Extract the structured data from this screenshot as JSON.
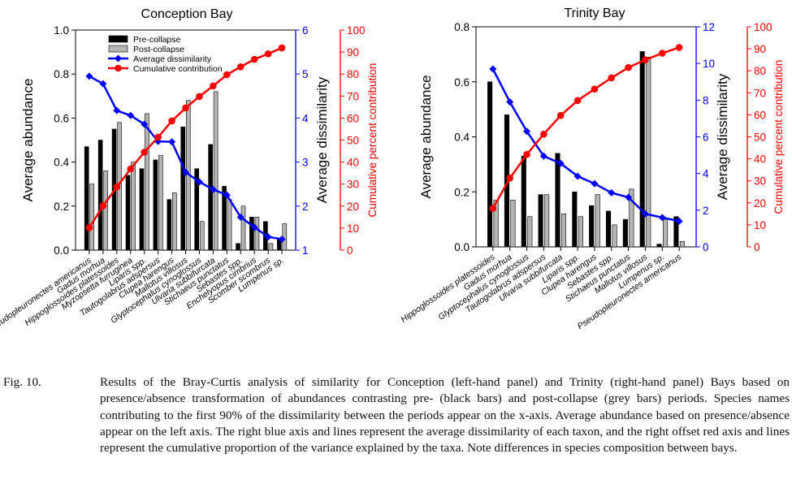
{
  "legend": {
    "pre": "Pre-collapse",
    "post": "Post-collapse",
    "diss": "Average dissimilarity",
    "cum": "Cumulative contribution"
  },
  "colors": {
    "pre": "#000000",
    "post": "#b4b4b4",
    "dissimilarity": "#0000ff",
    "cumulative": "#ff0000"
  },
  "caption": {
    "label": "Fig. 10.",
    "text": "Results of the Bray-Curtis analysis of similarity for Conception (left-hand panel) and Trinity (right-hand panel) Bays based on presence/absence transformation of abundances contrasting pre- (black bars) and post-collapse (grey bars) periods. Species names contributing to the first 90% of the dissimilarity between the periods appear on the x-axis. Average abundance based on presence/absence appear on the left axis. The right blue axis and lines represent the average dissimilarity of each taxon, and the right offset red axis and lines represent the cumulative proportion of the variance explained by the taxa. Note differences in species composition between bays."
  },
  "chart_data": [
    {
      "type": "bar",
      "title": "Conception Bay",
      "xlabel": "",
      "ylabel": "Average abundance",
      "ylabel_right": "Average dissimilarity",
      "ylabel_right2": "Cumulative percent contribution",
      "ylim": [
        0,
        1.0
      ],
      "yticks": [
        "0.0",
        "0.2",
        "0.4",
        "0.6",
        "0.8",
        "1.0"
      ],
      "ylim_right": [
        1,
        6
      ],
      "yticks_right": [
        "1",
        "2",
        "3",
        "4",
        "5",
        "6"
      ],
      "ylim_right2": [
        0,
        100
      ],
      "yticks_right2": [
        "0",
        "10",
        "20",
        "30",
        "40",
        "50",
        "60",
        "70",
        "80",
        "90",
        "100"
      ],
      "legend_position": "top-left",
      "categories": [
        "Pseudopleuronectes americanus",
        "Gadus morhua",
        "Hippoglossoides platessoides",
        "Myzopsetta furruginea",
        "Liparis spp.",
        "Tautogolabrus adspersus",
        "Clupea harengus",
        "Mallotus villosus",
        "Glyptocephalus cynoglossus",
        "Ulvaria subbifurcata",
        "Stichaeus punctatus",
        "Sebastes spp.",
        "Enchelyopus cimbrius",
        "Scomber scombrus",
        "Lumpenus sp."
      ],
      "series": [
        {
          "name": "Pre-collapse",
          "kind": "bar",
          "axis": "left",
          "values": [
            0.47,
            0.5,
            0.55,
            0.34,
            0.37,
            0.41,
            0.23,
            0.56,
            0.37,
            0.48,
            0.29,
            0.03,
            0.15,
            0.13,
            0.05
          ]
        },
        {
          "name": "Post-collapse",
          "kind": "bar",
          "axis": "left",
          "values": [
            0.3,
            0.36,
            0.58,
            0.4,
            0.62,
            0.43,
            0.26,
            0.68,
            0.13,
            0.72,
            0.23,
            0.2,
            0.15,
            0.03,
            0.12
          ]
        },
        {
          "name": "Average dissimilarity",
          "kind": "line",
          "axis": "right",
          "values": [
            4.95,
            4.78,
            4.17,
            4.06,
            3.86,
            3.47,
            3.46,
            2.77,
            2.55,
            2.38,
            2.25,
            1.75,
            1.52,
            1.3,
            1.25
          ]
        },
        {
          "name": "Cumulative contribution",
          "kind": "line",
          "axis": "right2",
          "values": [
            10.2,
            20.1,
            28.7,
            36.9,
            44.5,
            51.3,
            58.7,
            64.6,
            69.8,
            74.6,
            79.7,
            83.3,
            86.7,
            89.2,
            91.9
          ]
        }
      ]
    },
    {
      "type": "bar",
      "title": "Trinity Bay",
      "xlabel": "",
      "ylabel": "Average abundance",
      "ylabel_right": "Average dissimilarity",
      "ylabel_right2": "Cumulative percent contribution",
      "ylim": [
        0,
        0.8
      ],
      "yticks": [
        "0.0",
        "0.2",
        "0.4",
        "0.6",
        "0.8"
      ],
      "ylim_right": [
        0,
        12
      ],
      "yticks_right": [
        "0",
        "2",
        "4",
        "6",
        "8",
        "10",
        "12"
      ],
      "ylim_right2": [
        0,
        100
      ],
      "yticks_right2": [
        "0",
        "10",
        "20",
        "30",
        "40",
        "50",
        "60",
        "70",
        "80",
        "90",
        "100"
      ],
      "legend_position": "none",
      "categories": [
        "Hippoglossoides platessoides",
        "Gadus morhua",
        "Glyptocephalus cynoglossus",
        "Tautogolabrus adspersus",
        "Ulvaria subbifurcata",
        "Liparis spp.",
        "Clupea harengus",
        "Sebastes spp.",
        "Stichaeus punctatus",
        "Mallotus villosus",
        "Lumpenus sp.",
        "Pseudopleuronectes americanus"
      ],
      "series": [
        {
          "name": "Pre-collapse",
          "kind": "bar",
          "axis": "left",
          "values": [
            0.6,
            0.48,
            0.33,
            0.19,
            0.34,
            0.2,
            0.15,
            0.13,
            0.1,
            0.71,
            0.01,
            0.11
          ]
        },
        {
          "name": "Post-collapse",
          "kind": "bar",
          "axis": "left",
          "values": [
            0.17,
            0.17,
            0.11,
            0.19,
            0.12,
            0.11,
            0.19,
            0.08,
            0.21,
            0.69,
            0.1,
            0.02
          ]
        },
        {
          "name": "Average dissimilarity",
          "kind": "line",
          "axis": "right",
          "values": [
            9.7,
            7.9,
            6.3,
            4.95,
            4.55,
            3.85,
            3.45,
            2.95,
            2.7,
            1.8,
            1.6,
            1.4
          ]
        },
        {
          "name": "Cumulative contribution",
          "kind": "line",
          "axis": "right2",
          "values": [
            17.5,
            31.2,
            42.0,
            51.2,
            59.7,
            66.5,
            71.7,
            76.8,
            81.5,
            85.0,
            88.0,
            90.6
          ]
        }
      ]
    }
  ]
}
